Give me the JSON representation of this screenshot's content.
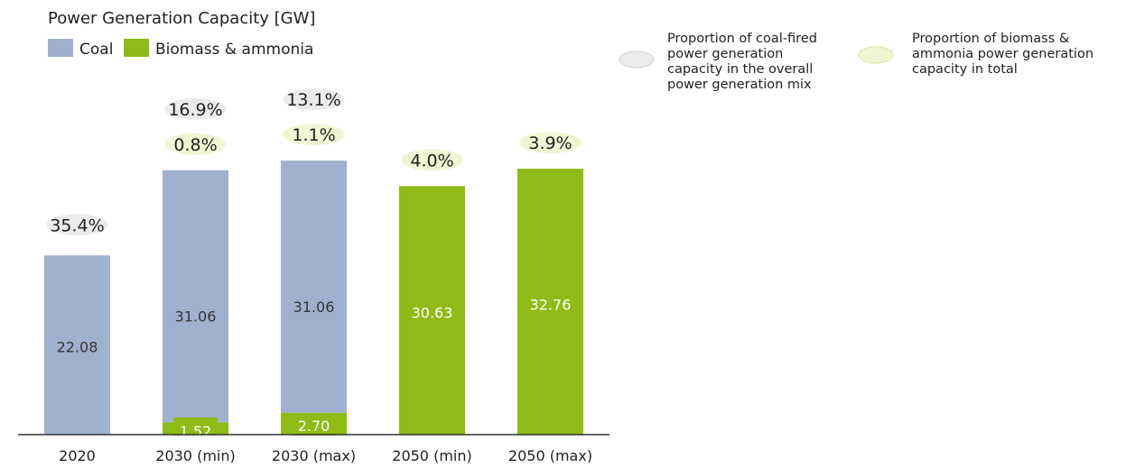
{
  "chart_data": {
    "type": "bar",
    "stacked": true,
    "title": "Power Generation Capacity [GW]",
    "categories": [
      "2020",
      "2030 (min)",
      "2030 (max)",
      "2050 (min)",
      "2050 (max)"
    ],
    "series": [
      {
        "name": "Coal",
        "color": "#9fb1cf",
        "values": [
          22.08,
          31.06,
          31.06,
          0,
          0
        ],
        "labels": [
          "22.08",
          "31.06",
          "31.06",
          "",
          ""
        ]
      },
      {
        "name": "Biomass & ammonia",
        "color": "#8fbb16",
        "values": [
          0,
          1.52,
          2.7,
          30.63,
          32.76
        ],
        "labels": [
          "",
          "1.52",
          "2.70",
          "30.63",
          "32.76"
        ]
      }
    ],
    "coal_share_labels": [
      "35.4%",
      "16.9%",
      "13.1%",
      "",
      ""
    ],
    "biomass_share_labels": [
      "",
      "0.8%",
      "1.1%",
      "4.0%",
      "3.9%"
    ],
    "legend": {
      "coal_label": "Coal",
      "biomass_label": "Biomass & ammonia"
    },
    "bubble_legend": {
      "coal": {
        "lines": [
          "Proportion of coal-fired",
          "power generation",
          "capacity in the overall",
          "power generation mix"
        ],
        "color": "#ebebeb"
      },
      "biomass": {
        "lines": [
          "Proportion of biomass &",
          "ammonia power generation",
          "capacity in total"
        ],
        "color": "#eef6d3"
      }
    },
    "ylim": [
      0,
      36
    ],
    "grid": false
  }
}
